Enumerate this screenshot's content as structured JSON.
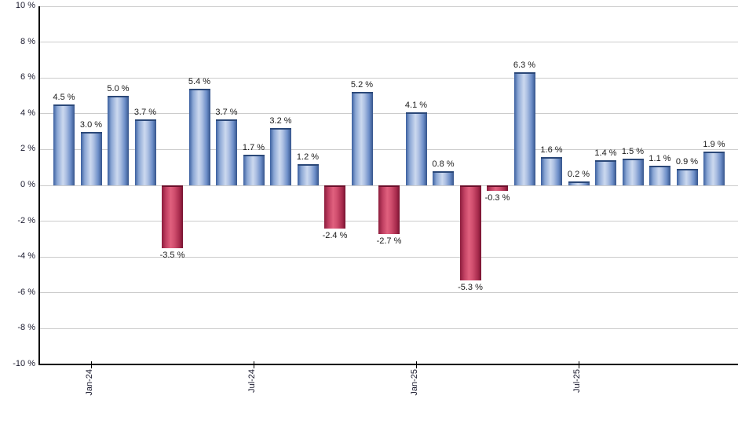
{
  "chart_data": {
    "type": "bar",
    "title": "",
    "xlabel": "",
    "ylabel": "",
    "unit": "%",
    "ylim": [
      -10,
      10
    ],
    "grid": true,
    "legend": false,
    "y_axis": {
      "tick_step": 2,
      "ticks": [
        10,
        8,
        6,
        4,
        2,
        0,
        -2,
        -4,
        -6,
        -8,
        -10
      ],
      "tick_labels": [
        "10 %",
        "8 %",
        "6 %",
        "4 %",
        "2 %",
        "0 %",
        "-2 %",
        "-4 %",
        "-6 %",
        "-8 %",
        "-10 %"
      ]
    },
    "x_ticks": [
      {
        "bar_index": 1,
        "label": "Jan-24"
      },
      {
        "bar_index": 7,
        "label": "Jul-24"
      },
      {
        "bar_index": 13,
        "label": "Jan-25"
      },
      {
        "bar_index": 19,
        "label": "Jul-25"
      }
    ],
    "bars": [
      {
        "value": 4.5,
        "label": "4.5 %"
      },
      {
        "value": 3.0,
        "label": "3.0 %"
      },
      {
        "value": 5.0,
        "label": "5.0 %"
      },
      {
        "value": 3.7,
        "label": "3.7 %"
      },
      {
        "value": -3.5,
        "label": "-3.5 %"
      },
      {
        "value": 5.4,
        "label": "5.4 %"
      },
      {
        "value": 3.7,
        "label": "3.7 %"
      },
      {
        "value": 1.7,
        "label": "1.7 %"
      },
      {
        "value": 3.2,
        "label": "3.2 %"
      },
      {
        "value": 1.2,
        "label": "1.2 %"
      },
      {
        "value": -2.4,
        "label": "-2.4 %"
      },
      {
        "value": 5.2,
        "label": "5.2 %"
      },
      {
        "value": -2.7,
        "label": "-2.7 %"
      },
      {
        "value": 4.1,
        "label": "4.1 %"
      },
      {
        "value": 0.8,
        "label": "0.8 %"
      },
      {
        "value": -5.3,
        "label": "-5.3 %"
      },
      {
        "value": -0.3,
        "label": "-0.3 %"
      },
      {
        "value": 6.3,
        "label": "6.3 %"
      },
      {
        "value": 1.6,
        "label": "1.6 %"
      },
      {
        "value": 0.2,
        "label": "0.2 %"
      },
      {
        "value": 1.4,
        "label": "1.4 %"
      },
      {
        "value": 1.5,
        "label": "1.5 %"
      },
      {
        "value": 1.1,
        "label": "1.1 %"
      },
      {
        "value": 0.9,
        "label": "0.9 %"
      },
      {
        "value": 1.9,
        "label": "1.9 %"
      }
    ],
    "colors": {
      "positive_bar_dark": "#3a5f9f",
      "positive_bar_light": "#ccd9ef",
      "negative_bar_dark": "#8c1c3c",
      "negative_bar_light": "#e0607e",
      "gridline": "#cccccc",
      "axis": "#000000",
      "text": "#1a1a1a"
    }
  }
}
